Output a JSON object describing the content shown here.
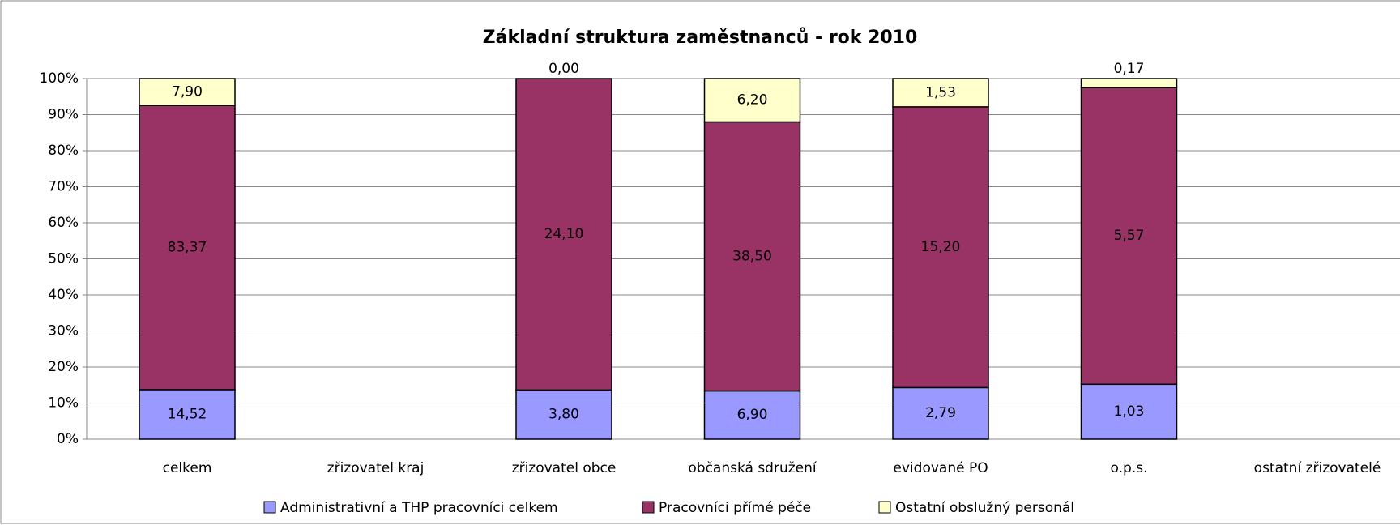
{
  "chart_data": {
    "type": "bar",
    "stack": "percent",
    "title": "Základní struktura zaměstnanců - rok 2010",
    "categories": [
      "celkem",
      "zřizovatel kraj",
      "zřizovatel obce",
      "občanská sdružení",
      "evidované PO",
      "o.p.s.",
      "ostatní zřizovatelé"
    ],
    "series": [
      {
        "name": "Administrativní a THP pracovníci celkem",
        "color": "#9999ff",
        "values": [
          14.52,
          null,
          3.8,
          6.9,
          2.79,
          1.03,
          null
        ],
        "value_labels": [
          "14,52",
          null,
          "3,80",
          "6,90",
          "2,79",
          "1,03",
          null
        ]
      },
      {
        "name": "Pracovníci přímé péče",
        "color": "#993366",
        "values": [
          83.37,
          null,
          24.1,
          38.5,
          15.2,
          5.57,
          null
        ],
        "value_labels": [
          "83,37",
          null,
          "24,10",
          "38,50",
          "15,20",
          "5,57",
          null
        ]
      },
      {
        "name": "Ostatní obslužný personál",
        "color": "#ffffcc",
        "values": [
          7.9,
          null,
          0,
          6.2,
          1.53,
          0.17,
          null
        ],
        "value_labels": [
          "7,90",
          null,
          "0,00",
          "6,20",
          "1,53",
          "0,17",
          null
        ]
      }
    ],
    "ylim": [
      0,
      100
    ],
    "yticks": [
      {
        "value": 0,
        "label": "0%"
      },
      {
        "value": 10,
        "label": "10%"
      },
      {
        "value": 20,
        "label": "20%"
      },
      {
        "value": 30,
        "label": "30%"
      },
      {
        "value": 40,
        "label": "40%"
      },
      {
        "value": 50,
        "label": "50%"
      },
      {
        "value": 60,
        "label": "60%"
      },
      {
        "value": 70,
        "label": "70%"
      },
      {
        "value": 80,
        "label": "80%"
      },
      {
        "value": 90,
        "label": "90%"
      },
      {
        "value": 100,
        "label": "100%"
      }
    ],
    "grid": true,
    "legend": "bottom"
  }
}
